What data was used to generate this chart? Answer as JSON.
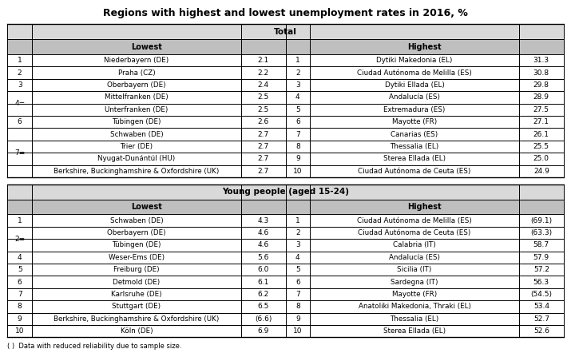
{
  "title": "Regions with highest and lowest unemployment rates in 2016, %",
  "section1_header": "Total",
  "section2_header": "Young people (aged 15-24)",
  "lowest_header": "Lowest",
  "highest_header": "Highest",
  "footnote": "( )  Data with reduced reliability due to sample size.",
  "total_lowest": [
    [
      "1",
      "Niederbayern (DE)",
      "2.1"
    ],
    [
      "2",
      "Praha (CZ)",
      "2.2"
    ],
    [
      "3",
      "Oberbayern (DE)",
      "2.4"
    ],
    [
      "4=",
      "Mittelfranken (DE)",
      "2.5"
    ],
    [
      "4=",
      "Unterfranken (DE)",
      "2.5"
    ],
    [
      "6",
      "Tübingen (DE)",
      "2.6"
    ],
    [
      "7=",
      "Schwaben (DE)",
      "2.7"
    ],
    [
      "7=",
      "Trier (DE)",
      "2.7"
    ],
    [
      "7=",
      "Nyugat-Dunántúl (HU)",
      "2.7"
    ],
    [
      "7=",
      "Berkshire, Buckinghamshire & Oxfordshire (UK)",
      "2.7"
    ]
  ],
  "total_highest": [
    [
      "1",
      "Dytiki Makedonia (EL)",
      "31.3"
    ],
    [
      "2",
      "Ciudad Autónoma de Melilla (ES)",
      "30.8"
    ],
    [
      "3",
      "Dytiki Ellada (EL)",
      "29.8"
    ],
    [
      "4",
      "Andalucía (ES)",
      "28.9"
    ],
    [
      "5",
      "Extremadura (ES)",
      "27.5"
    ],
    [
      "6",
      "Mayotte (FR)",
      "27.1"
    ],
    [
      "7",
      "Canarias (ES)",
      "26.1"
    ],
    [
      "8",
      "Thessalia (EL)",
      "25.5"
    ],
    [
      "9",
      "Sterea Ellada (EL)",
      "25.0"
    ],
    [
      "10",
      "Ciudad Autónoma de Ceuta (ES)",
      "24.9"
    ]
  ],
  "young_lowest": [
    [
      "1",
      "Schwaben (DE)",
      "4.3"
    ],
    [
      "2=",
      "Oberbayern (DE)",
      "4.6"
    ],
    [
      "2=",
      "Tübingen (DE)",
      "4.6"
    ],
    [
      "4",
      "Weser-Ems (DE)",
      "5.6"
    ],
    [
      "5",
      "Freiburg (DE)",
      "6.0"
    ],
    [
      "6",
      "Detmold (DE)",
      "6.1"
    ],
    [
      "7",
      "Karlsruhe (DE)",
      "6.2"
    ],
    [
      "8",
      "Stuttgart (DE)",
      "6.5"
    ],
    [
      "9",
      "Berkshire, Buckinghamshire & Oxfordshire (UK)",
      "(6.6)"
    ],
    [
      "10",
      "Köln (DE)",
      "6.9"
    ]
  ],
  "young_highest": [
    [
      "1",
      "Ciudad Autónoma de Melilla (ES)",
      "(69.1)"
    ],
    [
      "2",
      "Ciudad Autónoma de Ceuta (ES)",
      "(63.3)"
    ],
    [
      "3",
      "Calabria (IT)",
      "58.7"
    ],
    [
      "4",
      "Andalucía (ES)",
      "57.9"
    ],
    [
      "5",
      "Sicilia (IT)",
      "57.2"
    ],
    [
      "6",
      "Sardegna (IT)",
      "56.3"
    ],
    [
      "7",
      "Mayotte (FR)",
      "(54.5)"
    ],
    [
      "8",
      "Anatoliki Makedonia, Thraki (EL)",
      "53.4"
    ],
    [
      "9",
      "Thessalia (EL)",
      "52.7"
    ],
    [
      "10",
      "Sterea Ellada (EL)",
      "52.6"
    ]
  ],
  "bg_header": "#d9d9d9",
  "bg_subheader": "#bfbfbf",
  "bg_white": "#ffffff",
  "border_color": "#000000",
  "text_color": "#000000",
  "title_fontsize": 9.0,
  "header_fontsize": 7.5,
  "subheader_fontsize": 7.0,
  "data_fontsize": 6.5,
  "region_fontsize": 6.3,
  "footnote_fontsize": 6.0
}
